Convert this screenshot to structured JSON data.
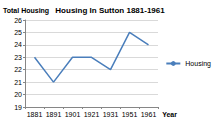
{
  "chart_data": {
    "type": "line",
    "title": "Housing In Sutton 1881-1961",
    "x_label": "Year",
    "y_label": "Total Housing",
    "categories": [
      "1881",
      "1891",
      "1901",
      "1921",
      "1931",
      "1951",
      "1961"
    ],
    "series": [
      {
        "name": "Housing",
        "color": "#4a7ebb",
        "values": [
          23,
          21,
          23,
          23,
          22,
          25,
          24
        ]
      }
    ],
    "ylim": [
      19,
      26
    ],
    "yticks": [
      19,
      20,
      21,
      22,
      23,
      24,
      25,
      26
    ],
    "grid": true,
    "legend": "right"
  }
}
